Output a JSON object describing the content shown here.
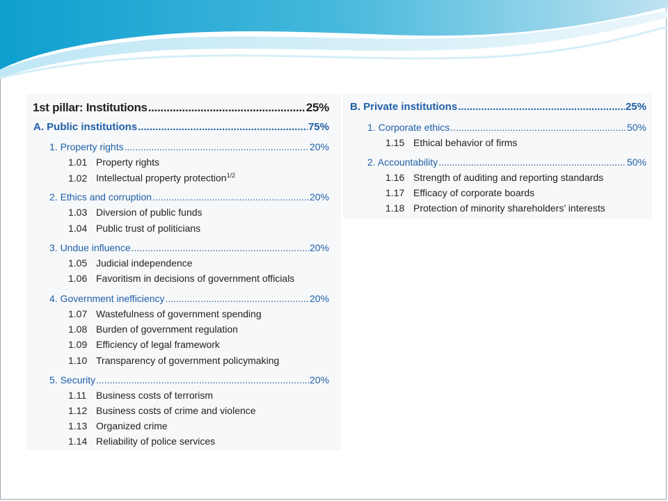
{
  "pillar": {
    "label": "1st pillar: Institutions",
    "pct": "25%"
  },
  "sections": {
    "A": {
      "label": "A.  Public institutions",
      "pct": "75%"
    },
    "B": {
      "label": "B. Private institutions",
      "pct": "25%"
    }
  },
  "categories": {
    "c1": {
      "label": "1.   Property rights",
      "pct": "20%"
    },
    "c2": {
      "label": "2.   Ethics and corruption",
      "pct": "20%"
    },
    "c3": {
      "label": "3.   Undue influence",
      "pct": "20%"
    },
    "c4": {
      "label": "4.   Government inefficiency",
      "pct": "20%"
    },
    "c5": {
      "label": "5.   Security",
      "pct": "20%"
    },
    "b1": {
      "label": "1.   Corporate ethics",
      "pct": "50%"
    },
    "b2": {
      "label": "2.   Accountability",
      "pct": "50%"
    }
  },
  "items": [
    {
      "num": "1.01",
      "text": "Property rights"
    },
    {
      "num": "1.02",
      "text": "Intellectual property protection",
      "sup": "1/2"
    },
    {
      "num": "1.03",
      "text": "Diversion of public funds"
    },
    {
      "num": "1.04",
      "text": "Public trust of politicians"
    },
    {
      "num": "1.05",
      "text": "Judicial independence"
    },
    {
      "num": "1.06",
      "text": "Favoritism in decisions of government officials"
    },
    {
      "num": "1.07",
      "text": "Wastefulness of government spending"
    },
    {
      "num": "1.08",
      "text": "Burden of government regulation"
    },
    {
      "num": "1.09",
      "text": "Efficiency of legal framework"
    },
    {
      "num": "1.10",
      "text": "Transparency of government policymaking"
    },
    {
      "num": "1.11",
      "text": "Business costs of terrorism"
    },
    {
      "num": "1.12",
      "text": "Business costs of crime and violence"
    },
    {
      "num": "1.13",
      "text": "Organized crime"
    },
    {
      "num": "1.14",
      "text": "Reliability of police services"
    },
    {
      "num": "1.15",
      "text": "Ethical behavior of firms"
    },
    {
      "num": "1.16",
      "text": "Strength of auditing and reporting standards"
    },
    {
      "num": "1.17",
      "text": "Efficacy of corporate boards"
    },
    {
      "num": "1.18",
      "text": "Protection of minority shareholders’ interests"
    }
  ]
}
